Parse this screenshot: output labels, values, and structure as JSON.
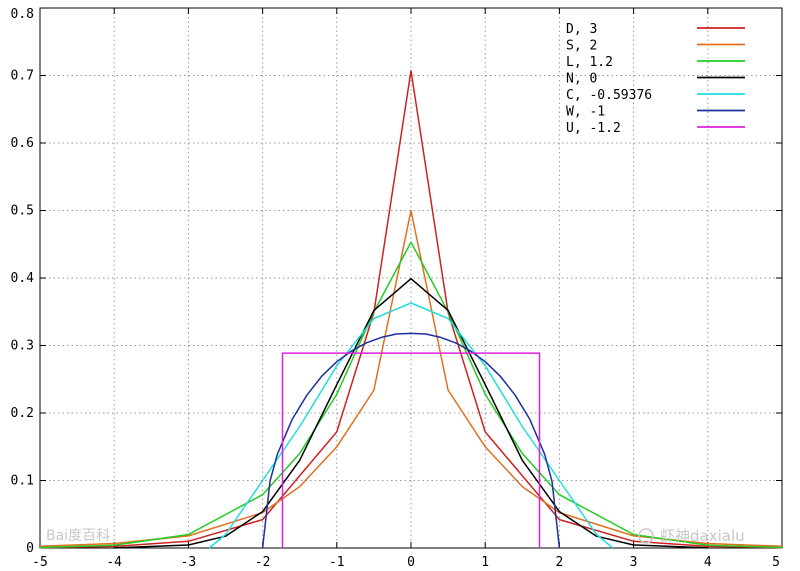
{
  "chart_data": {
    "type": "line",
    "xlim": [
      -5,
      5
    ],
    "ylim": [
      0,
      0.8
    ],
    "x_ticks": [
      "-5",
      "-4",
      "-3",
      "-2",
      "-1",
      "0",
      "1",
      "2",
      "3",
      "4",
      "5"
    ],
    "y_ticks": [
      "0",
      "0.1",
      "0.2",
      "0.3",
      "0.4",
      "0.5",
      "0.6",
      "0.7",
      "0.8"
    ],
    "grid": true,
    "legend_position": "top-right",
    "series": [
      {
        "name": "D,  3",
        "color": "#cc2222",
        "x": [
          -5,
          -4,
          -3,
          -2,
          -1,
          -0.5,
          0,
          0.5,
          1,
          2,
          3,
          4,
          5
        ],
        "y": [
          0.0006,
          0.0024,
          0.01,
          0.042,
          0.172,
          0.349,
          0.707,
          0.349,
          0.172,
          0.042,
          0.01,
          0.0024,
          0.0006
        ]
      },
      {
        "name": "S,  2",
        "color": "#e07020",
        "x": [
          -5,
          -4,
          -3,
          -2,
          -1.5,
          -1,
          -0.5,
          0,
          0.5,
          1,
          1.5,
          2,
          3,
          4,
          5
        ],
        "y": [
          0.0025,
          0.0067,
          0.018,
          0.0525,
          0.091,
          0.15,
          0.234,
          0.5,
          0.234,
          0.15,
          0.091,
          0.0525,
          0.018,
          0.0067,
          0.0025
        ]
      },
      {
        "name": "L,  1.2",
        "color": "#22cc22",
        "x": [
          -5,
          -4,
          -3,
          -2,
          -1.5,
          -1,
          -0.5,
          0,
          0.5,
          1,
          1.5,
          2,
          3,
          4,
          5
        ],
        "y": [
          0.0008,
          0.004,
          0.02,
          0.079,
          0.14,
          0.228,
          0.35,
          0.453,
          0.35,
          0.228,
          0.14,
          0.079,
          0.02,
          0.004,
          0.0008
        ]
      },
      {
        "name": "N,  0",
        "color": "#000000",
        "x": [
          -4,
          -3,
          -2.5,
          -2,
          -1.5,
          -1,
          -0.5,
          0,
          0.5,
          1,
          1.5,
          2,
          2.5,
          3,
          4
        ],
        "y": [
          0.0001,
          0.0044,
          0.0175,
          0.054,
          0.13,
          0.242,
          0.352,
          0.399,
          0.352,
          0.242,
          0.13,
          0.054,
          0.0175,
          0.0044,
          0.0001
        ]
      },
      {
        "name": "C,  -0.59376",
        "color": "#22dddd",
        "x": [
          -2.72,
          -2.5,
          -2,
          -1.5,
          -1,
          -0.5,
          0,
          0.5,
          1,
          1.5,
          2,
          2.5,
          2.72
        ],
        "y": [
          0,
          0.02,
          0.1,
          0.18,
          0.27,
          0.34,
          0.363,
          0.34,
          0.27,
          0.18,
          0.1,
          0.02,
          0
        ]
      },
      {
        "name": "W,  -1",
        "color": "#1f2f9f",
        "x": [
          -2,
          -1.9,
          -1.8,
          -1.6,
          -1.4,
          -1.2,
          -1,
          -0.8,
          -0.6,
          -0.4,
          -0.2,
          0,
          0.2,
          0.4,
          0.6,
          0.8,
          1,
          1.2,
          1.4,
          1.6,
          1.8,
          1.9,
          2
        ],
        "y": [
          0,
          0.099,
          0.139,
          0.191,
          0.227,
          0.255,
          0.276,
          0.292,
          0.304,
          0.312,
          0.317,
          0.318,
          0.317,
          0.312,
          0.304,
          0.292,
          0.276,
          0.255,
          0.227,
          0.191,
          0.139,
          0.099,
          0
        ]
      },
      {
        "name": "U,  -1.2",
        "color": "#dd22dd",
        "x": [
          -1.732,
          -1.732,
          1.732,
          1.732
        ],
        "y": [
          0,
          0.2887,
          0.2887,
          0
        ]
      }
    ]
  },
  "watermarks": [
    "Bai度百科",
    "虾神daxialu"
  ]
}
